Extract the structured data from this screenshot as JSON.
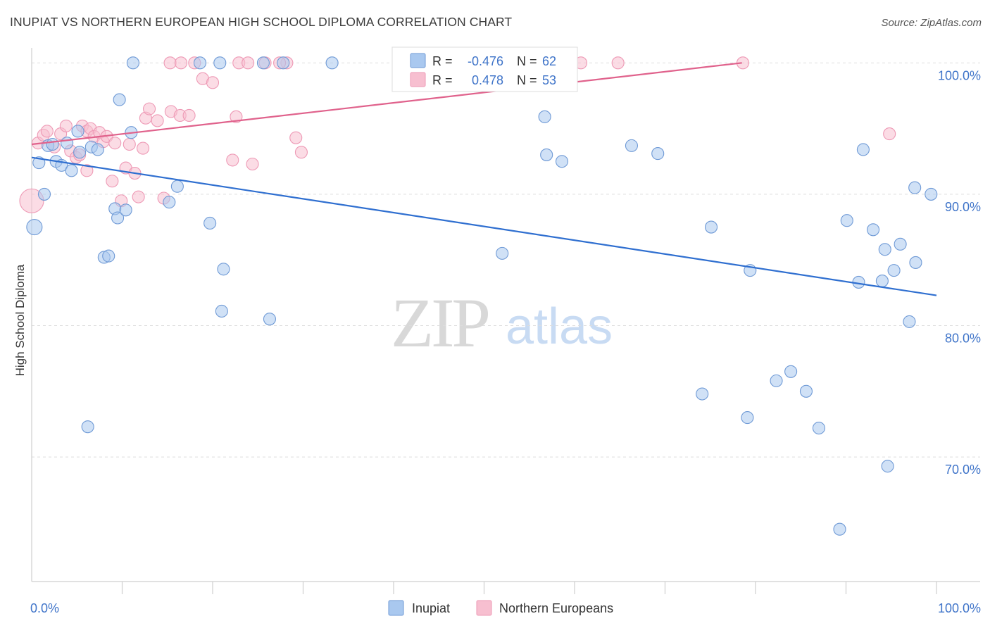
{
  "title": "INUPIAT VS NORTHERN EUROPEAN HIGH SCHOOL DIPLOMA CORRELATION CHART",
  "source": "Source: ZipAtlas.com",
  "watermark": {
    "zip": "ZIP",
    "atlas": "atlas"
  },
  "colors": {
    "blue_fill": "#a9c8ef",
    "blue_stroke": "#6f9ad6",
    "blue_line": "#2f6fd0",
    "pink_fill": "#f7bfd0",
    "pink_stroke": "#ee99b5",
    "pink_line": "#e0628c",
    "tick_text": "#3f74c9",
    "grid": "#dddddd"
  },
  "legend": {
    "rows": [
      {
        "r_label": "R = ",
        "r_value": "-0.476",
        "n_label": "N = ",
        "n_value": "62",
        "swatch": "blue"
      },
      {
        "r_label": "R = ",
        "r_value": "0.478",
        "n_label": "N = ",
        "n_value": "53",
        "swatch": "pink"
      }
    ]
  },
  "bottom_legend": [
    "Inupiat",
    "Northern Europeans"
  ],
  "chart_data": {
    "type": "scatter",
    "title": "INUPIAT VS NORTHERN EUROPEAN HIGH SCHOOL DIPLOMA CORRELATION CHART",
    "xlabel": "",
    "ylabel": "High School Diploma",
    "xlim": [
      0,
      100
    ],
    "ylim": [
      59.5,
      100.5
    ],
    "x_tick_labels": [
      "0.0%",
      "100.0%"
    ],
    "y_ticks": [
      70,
      80,
      90,
      100
    ],
    "y_tick_labels": [
      "70.0%",
      "80.0%",
      "90.0%",
      "100.0%"
    ],
    "grid": true,
    "legend_position": "top-center",
    "series": [
      {
        "name": "Inupiat",
        "color": "blue",
        "trend": {
          "x": [
            0,
            100
          ],
          "y": [
            92.8,
            82.3
          ]
        },
        "points": [
          [
            0.3,
            87.5
          ],
          [
            0.8,
            92.4
          ],
          [
            1.4,
            90.0
          ],
          [
            1.8,
            93.7
          ],
          [
            2.3,
            93.8
          ],
          [
            2.7,
            92.5
          ],
          [
            3.3,
            92.2
          ],
          [
            3.9,
            93.9
          ],
          [
            4.4,
            91.8
          ],
          [
            5.1,
            94.8
          ],
          [
            6.6,
            93.6
          ],
          [
            7.3,
            93.4
          ],
          [
            5.3,
            93.2
          ],
          [
            8.0,
            85.2
          ],
          [
            8.5,
            85.3
          ],
          [
            9.2,
            88.9
          ],
          [
            9.5,
            88.2
          ],
          [
            10.4,
            88.8
          ],
          [
            6.2,
            72.3
          ],
          [
            11.0,
            94.7
          ],
          [
            9.7,
            97.2
          ],
          [
            11.2,
            100.0
          ],
          [
            18.6,
            100.0
          ],
          [
            20.8,
            100.0
          ],
          [
            25.6,
            100.0
          ],
          [
            27.8,
            100.0
          ],
          [
            33.2,
            100.0
          ],
          [
            43.5,
            100.0
          ],
          [
            15.2,
            89.4
          ],
          [
            16.1,
            90.6
          ],
          [
            19.7,
            87.8
          ],
          [
            21.2,
            84.3
          ],
          [
            21.0,
            81.1
          ],
          [
            26.3,
            80.5
          ],
          [
            52.0,
            85.5
          ],
          [
            56.7,
            95.9
          ],
          [
            56.9,
            93.0
          ],
          [
            58.6,
            92.5
          ],
          [
            66.3,
            93.7
          ],
          [
            69.2,
            93.1
          ],
          [
            75.1,
            87.5
          ],
          [
            79.4,
            84.2
          ],
          [
            74.1,
            74.8
          ],
          [
            79.1,
            73.0
          ],
          [
            82.3,
            75.8
          ],
          [
            83.9,
            76.5
          ],
          [
            85.6,
            75.0
          ],
          [
            87.0,
            72.2
          ],
          [
            90.1,
            88.0
          ],
          [
            91.4,
            83.3
          ],
          [
            93.0,
            87.3
          ],
          [
            94.3,
            85.8
          ],
          [
            96.0,
            86.2
          ],
          [
            97.7,
            84.8
          ],
          [
            99.4,
            90.0
          ],
          [
            95.3,
            84.2
          ],
          [
            94.0,
            83.4
          ],
          [
            97.0,
            80.3
          ],
          [
            94.6,
            69.3
          ],
          [
            89.3,
            64.5
          ],
          [
            91.9,
            93.4
          ],
          [
            97.6,
            90.5
          ]
        ]
      },
      {
        "name": "Northern Europeans",
        "color": "pink",
        "trend": {
          "x": [
            0,
            78.5
          ],
          "y": [
            93.8,
            100.0
          ]
        },
        "points": [
          [
            0.0,
            89.5
          ],
          [
            0.7,
            93.9
          ],
          [
            1.3,
            94.5
          ],
          [
            1.7,
            94.8
          ],
          [
            2.5,
            93.6
          ],
          [
            3.2,
            94.6
          ],
          [
            3.8,
            95.2
          ],
          [
            4.3,
            93.3
          ],
          [
            4.9,
            92.8
          ],
          [
            5.3,
            93.0
          ],
          [
            5.6,
            95.2
          ],
          [
            6.1,
            94.8
          ],
          [
            6.5,
            95.0
          ],
          [
            6.9,
            94.4
          ],
          [
            7.5,
            94.7
          ],
          [
            7.9,
            94.0
          ],
          [
            8.3,
            94.4
          ],
          [
            6.1,
            91.8
          ],
          [
            8.9,
            91.0
          ],
          [
            9.2,
            93.9
          ],
          [
            9.9,
            89.5
          ],
          [
            10.4,
            92.0
          ],
          [
            10.8,
            93.8
          ],
          [
            11.4,
            91.6
          ],
          [
            11.8,
            89.8
          ],
          [
            12.3,
            93.5
          ],
          [
            12.6,
            95.8
          ],
          [
            13.0,
            96.5
          ],
          [
            13.9,
            95.6
          ],
          [
            14.6,
            89.7
          ],
          [
            15.4,
            96.3
          ],
          [
            16.4,
            96.0
          ],
          [
            17.4,
            96.0
          ],
          [
            18.9,
            98.8
          ],
          [
            20.0,
            98.5
          ],
          [
            22.2,
            92.6
          ],
          [
            22.6,
            95.9
          ],
          [
            24.4,
            92.3
          ],
          [
            29.2,
            94.3
          ],
          [
            29.8,
            93.2
          ],
          [
            15.3,
            100.0
          ],
          [
            16.5,
            100.0
          ],
          [
            18.0,
            100.0
          ],
          [
            22.9,
            100.0
          ],
          [
            23.9,
            100.0
          ],
          [
            25.8,
            100.0
          ],
          [
            28.2,
            100.0
          ],
          [
            27.4,
            100.0
          ],
          [
            60.7,
            100.0
          ],
          [
            64.8,
            100.0
          ],
          [
            78.6,
            100.0
          ],
          [
            94.8,
            94.6
          ],
          [
            41.1,
            100.0
          ]
        ]
      }
    ]
  }
}
